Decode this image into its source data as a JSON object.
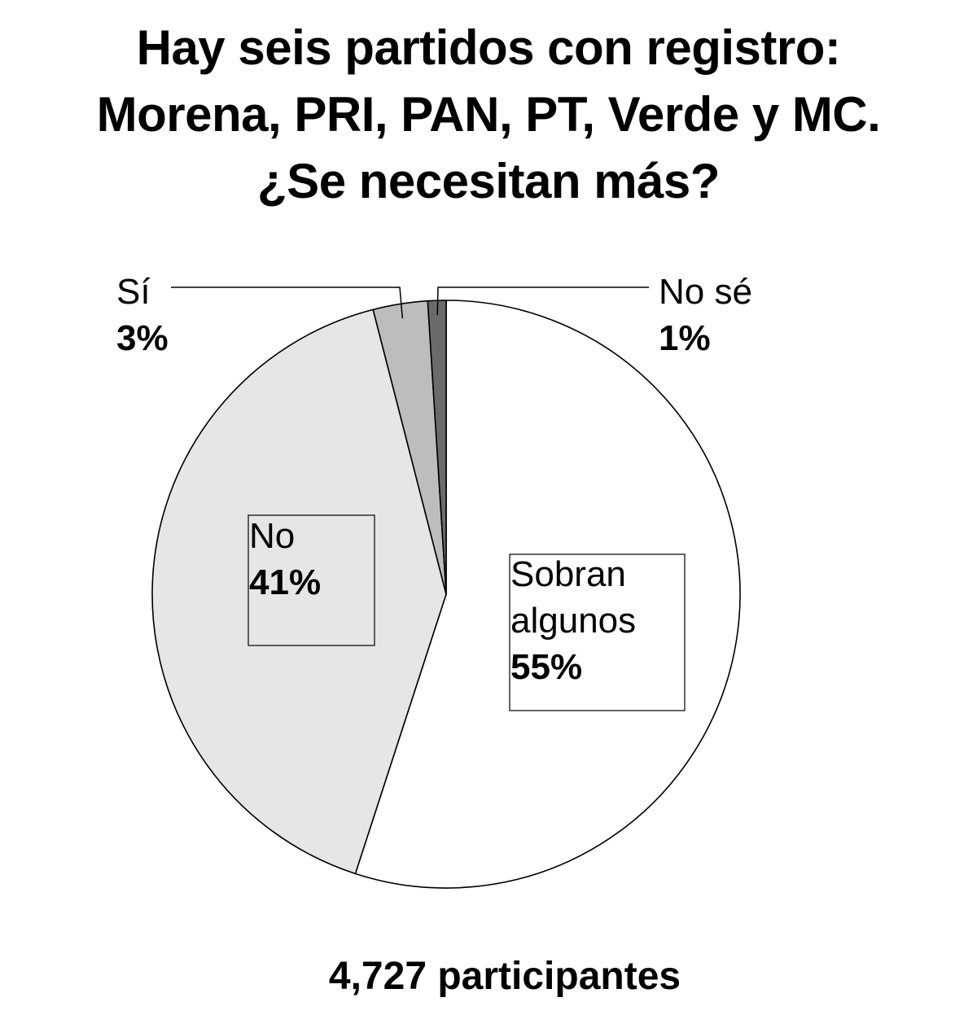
{
  "title": {
    "lines": [
      "Hay seis partidos con registro:",
      "Morena, PRI, PAN, PT, Verde y MC.",
      "¿Se necesitan más?"
    ]
  },
  "chart_data": {
    "type": "pie",
    "slices": [
      {
        "name": "Sobran algunos",
        "label_lines": [
          "Sobran",
          "algunos"
        ],
        "value": 55,
        "display": "55%",
        "color": "#ffffff"
      },
      {
        "name": "No",
        "label_lines": [
          "No"
        ],
        "value": 41,
        "display": "41%",
        "color": "#e6e6e6"
      },
      {
        "name": "Sí",
        "label_lines": [
          "Sí"
        ],
        "value": 3,
        "display": "3%",
        "color": "#bdbdbd"
      },
      {
        "name": "No sé",
        "label_lines": [
          "No sé"
        ],
        "value": 1,
        "display": "1%",
        "color": "#6b6b6b"
      }
    ],
    "start_angle": "12 o'clock",
    "direction": "clockwise",
    "stroke_color": "#000000"
  },
  "footer": {
    "participants": "4,727 participantes"
  }
}
